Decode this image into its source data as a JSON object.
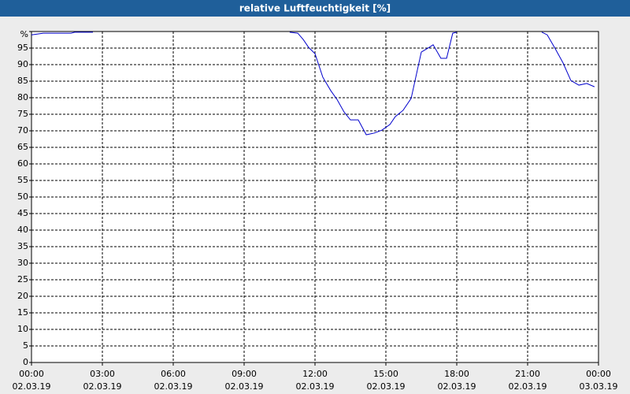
{
  "chart_data": {
    "type": "line",
    "title": "relative Luftfeuchtigkeit [%]",
    "x": [
      0,
      0.5,
      1.67,
      1.83,
      2.6,
      null,
      10.93,
      11.27,
      11.5,
      11.73,
      12,
      12.33,
      12.67,
      12.93,
      13.23,
      13.5,
      13.83,
      14.17,
      14.5,
      14.83,
      15.17,
      15.4,
      15.73,
      16.07,
      16.5,
      16.83,
      17,
      17.33,
      17.57,
      17.83,
      18,
      null,
      21.6,
      21.83,
      22.17,
      22.5,
      22.83,
      23.17,
      23.5,
      23.83
    ],
    "series": [
      {
        "name": "relative Luftfeuchtigkeit",
        "color": "#0000cc",
        "values": [
          99,
          99.5,
          99.5,
          99.8,
          99.8,
          null,
          99.8,
          99.5,
          97.6,
          95.2,
          93.3,
          86.2,
          82.1,
          79.5,
          75.7,
          73.3,
          73.3,
          68.8,
          69.3,
          70.2,
          71.9,
          74.3,
          76.2,
          79.8,
          93.8,
          95.2,
          96,
          91.9,
          91.9,
          99.5,
          99.8,
          null,
          99.8,
          99,
          94.8,
          90.5,
          85.2,
          83.8,
          84.3,
          83.3
        ]
      }
    ],
    "xlim": [
      0,
      24
    ],
    "xticks": [
      {
        "value": 0,
        "label": "00:00",
        "date": "02.03.19"
      },
      {
        "value": 3,
        "label": "03:00",
        "date": "02.03.19"
      },
      {
        "value": 6,
        "label": "06:00",
        "date": "02.03.19"
      },
      {
        "value": 9,
        "label": "09:00",
        "date": "02.03.19"
      },
      {
        "value": 12,
        "label": "12:00",
        "date": "02.03.19"
      },
      {
        "value": 15,
        "label": "15:00",
        "date": "02.03.19"
      },
      {
        "value": 18,
        "label": "18:00",
        "date": "02.03.19"
      },
      {
        "value": 21,
        "label": "21:00",
        "date": "02.03.19"
      },
      {
        "value": 24,
        "label": "00:00",
        "date": "03.03.19"
      }
    ],
    "ylim": [
      0,
      100
    ],
    "yticks": [
      0,
      5,
      10,
      15,
      20,
      25,
      30,
      35,
      40,
      45,
      50,
      55,
      60,
      65,
      70,
      75,
      80,
      85,
      90,
      95,
      {
        "value": 100,
        "label": "%"
      }
    ],
    "grid": true
  }
}
